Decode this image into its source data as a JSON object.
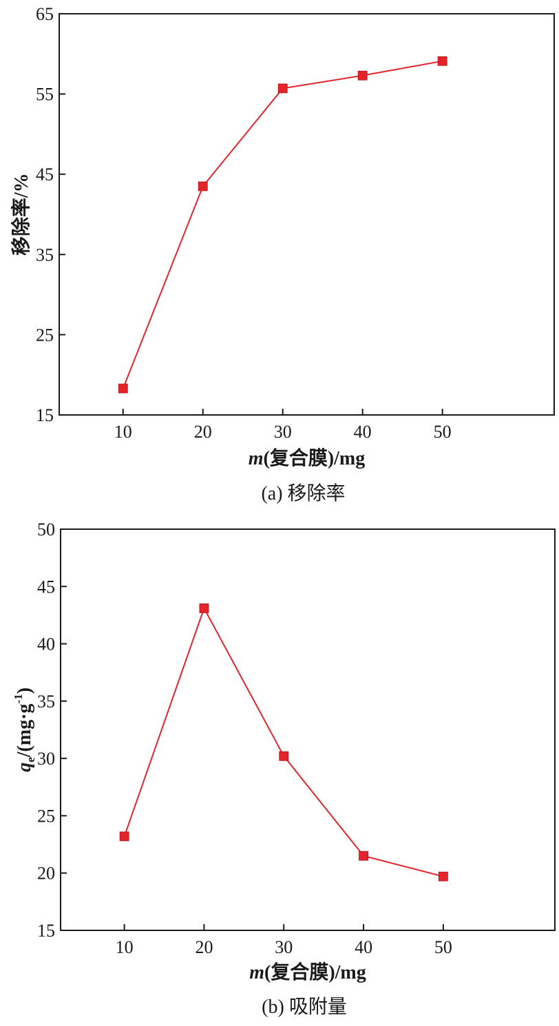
{
  "chart_data": [
    {
      "type": "line",
      "caption": "(a) 移除率",
      "xlabel": {
        "var": "m",
        "rest": "(复合膜)/mg"
      },
      "ylabel": "移除率/%",
      "x": [
        10,
        20,
        30,
        40,
        50
      ],
      "xticks": [
        10,
        20,
        30,
        40,
        50
      ],
      "xlim": [
        2,
        64
      ],
      "ylim": [
        15,
        65
      ],
      "yticks": [
        15,
        25,
        35,
        45,
        55,
        65
      ],
      "series": [
        {
          "values": [
            18.3,
            43.5,
            55.7,
            57.3,
            59.1
          ],
          "color": "#e3242b",
          "marker": "square"
        }
      ],
      "grid": false
    },
    {
      "type": "line",
      "caption": "(b) 吸附量",
      "xlabel": {
        "var": "m",
        "rest": "(复合膜)/mg"
      },
      "ylabel": {
        "var": "q",
        "sub": "e",
        "rest": "/(mg·g",
        "sup": "-1",
        "close": ")"
      },
      "x": [
        10,
        20,
        30,
        40,
        50
      ],
      "xticks": [
        10,
        20,
        30,
        40,
        50
      ],
      "xlim": [
        2,
        64
      ],
      "ylim": [
        15,
        50
      ],
      "yticks": [
        15,
        20,
        25,
        30,
        35,
        40,
        45,
        50
      ],
      "series": [
        {
          "values": [
            23.2,
            43.1,
            30.2,
            21.5,
            19.7
          ],
          "color": "#e3242b",
          "marker": "square"
        }
      ],
      "grid": false
    }
  ]
}
